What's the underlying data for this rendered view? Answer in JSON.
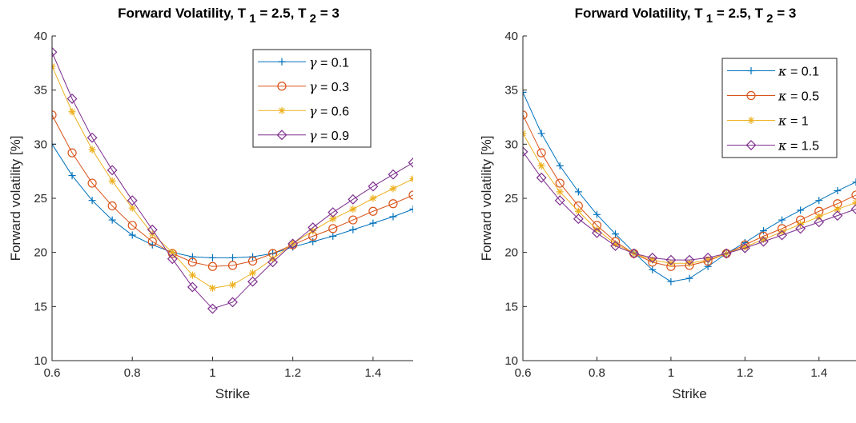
{
  "chart_data": [
    {
      "type": "line",
      "title": "Forward Volatility, T 1 = 2.5, T 2 = 3",
      "title_parts": {
        "main": "Forward Volatility, T",
        "sub1": "1",
        "mid": " = 2.5, T",
        "sub2": "2",
        "end": " = 3"
      },
      "xlabel": "Strike",
      "ylabel": "Forward volatility [%]",
      "xlim": [
        0.6,
        1.5
      ],
      "ylim": [
        10,
        40
      ],
      "xticks": [
        0.6,
        0.8,
        1,
        1.2,
        1.4
      ],
      "xtick_labels": [
        "0.6",
        "0.8",
        "1",
        "1.2",
        "1.4"
      ],
      "yticks": [
        10,
        15,
        20,
        25,
        30,
        35,
        40
      ],
      "ytick_labels": [
        "10",
        "15",
        "20",
        "25",
        "30",
        "35",
        "40"
      ],
      "legend_position": "top-right",
      "x": [
        0.6,
        0.65,
        0.7,
        0.75,
        0.8,
        0.85,
        0.9,
        0.95,
        1.0,
        1.05,
        1.1,
        1.15,
        1.2,
        1.25,
        1.3,
        1.35,
        1.4,
        1.45,
        1.5
      ],
      "series": [
        {
          "name": "γ = 0.1",
          "symbol": "γ",
          "value_text": " = 0.1",
          "color": "#0072BD",
          "marker": "plus",
          "values": [
            30.0,
            27.1,
            24.8,
            23.0,
            21.6,
            20.7,
            20.0,
            19.6,
            19.5,
            19.5,
            19.6,
            19.9,
            20.5,
            21.0,
            21.5,
            22.1,
            22.7,
            23.3,
            24.0
          ]
        },
        {
          "name": "γ = 0.3",
          "symbol": "γ",
          "value_text": " = 0.3",
          "color": "#D95319",
          "marker": "circle",
          "values": [
            32.7,
            29.2,
            26.4,
            24.3,
            22.5,
            21.0,
            19.9,
            19.1,
            18.7,
            18.8,
            19.2,
            19.9,
            20.7,
            21.5,
            22.2,
            23.0,
            23.8,
            24.5,
            25.3
          ]
        },
        {
          "name": "γ = 0.6",
          "symbol": "γ",
          "value_text": " = 0.6",
          "color": "#EDB120",
          "marker": "asterisk",
          "values": [
            37.2,
            33.0,
            29.5,
            26.6,
            24.1,
            21.7,
            20.0,
            17.9,
            16.7,
            17.0,
            18.1,
            19.4,
            20.8,
            22.0,
            23.1,
            24.0,
            25.0,
            25.9,
            26.8
          ]
        },
        {
          "name": "γ = 0.9",
          "symbol": "γ",
          "value_text": " = 0.9",
          "color": "#7E2F8E",
          "marker": "diamond",
          "values": [
            38.5,
            34.2,
            30.6,
            27.6,
            24.8,
            22.1,
            19.4,
            16.8,
            14.8,
            15.4,
            17.3,
            19.1,
            20.8,
            22.3,
            23.7,
            24.9,
            26.1,
            27.2,
            28.3
          ]
        }
      ]
    },
    {
      "type": "line",
      "title": "Forward Volatility, T 1 = 2.5, T 2 = 3",
      "title_parts": {
        "main": "Forward Volatility, T",
        "sub1": "1",
        "mid": " = 2.5, T",
        "sub2": "2",
        "end": " = 3"
      },
      "xlabel": "Strike",
      "ylabel": "Forward volatility [%]",
      "xlim": [
        0.6,
        1.5
      ],
      "ylim": [
        10,
        40
      ],
      "xticks": [
        0.6,
        0.8,
        1,
        1.2,
        1.4
      ],
      "xtick_labels": [
        "0.6",
        "0.8",
        "1",
        "1.2",
        "1.4"
      ],
      "yticks": [
        10,
        15,
        20,
        25,
        30,
        35,
        40
      ],
      "ytick_labels": [
        "10",
        "15",
        "20",
        "25",
        "30",
        "35",
        "40"
      ],
      "legend_position": "top-right",
      "x": [
        0.6,
        0.65,
        0.7,
        0.75,
        0.8,
        0.85,
        0.9,
        0.95,
        1.0,
        1.05,
        1.1,
        1.15,
        1.2,
        1.25,
        1.3,
        1.35,
        1.4,
        1.45,
        1.5
      ],
      "series": [
        {
          "name": "κ = 0.1",
          "symbol": "κ",
          "value_text": " = 0.1",
          "color": "#0072BD",
          "marker": "plus",
          "values": [
            34.8,
            31.0,
            28.0,
            25.6,
            23.5,
            21.7,
            20.0,
            18.4,
            17.3,
            17.6,
            18.7,
            19.9,
            20.9,
            22.0,
            23.0,
            23.9,
            24.8,
            25.7,
            26.5
          ]
        },
        {
          "name": "κ = 0.5",
          "symbol": "κ",
          "value_text": " = 0.5",
          "color": "#D95319",
          "marker": "circle",
          "values": [
            32.7,
            29.2,
            26.4,
            24.3,
            22.5,
            21.0,
            19.9,
            19.1,
            18.7,
            18.8,
            19.2,
            19.9,
            20.7,
            21.5,
            22.2,
            23.0,
            23.8,
            24.5,
            25.3
          ]
        },
        {
          "name": "κ = 1",
          "symbol": "κ",
          "value_text": " = 1",
          "color": "#EDB120",
          "marker": "asterisk",
          "values": [
            31.0,
            28.0,
            25.6,
            23.8,
            22.1,
            20.8,
            19.9,
            19.3,
            19.0,
            19.0,
            19.3,
            19.9,
            20.5,
            21.2,
            21.9,
            22.6,
            23.3,
            24.0,
            24.6
          ]
        },
        {
          "name": "κ = 1.5",
          "symbol": "κ",
          "value_text": " = 1.5",
          "color": "#7E2F8E",
          "marker": "diamond",
          "values": [
            29.3,
            26.9,
            24.8,
            23.1,
            21.8,
            20.6,
            19.9,
            19.5,
            19.3,
            19.3,
            19.5,
            19.9,
            20.4,
            21.0,
            21.6,
            22.2,
            22.8,
            23.4,
            24.0
          ]
        }
      ]
    }
  ]
}
